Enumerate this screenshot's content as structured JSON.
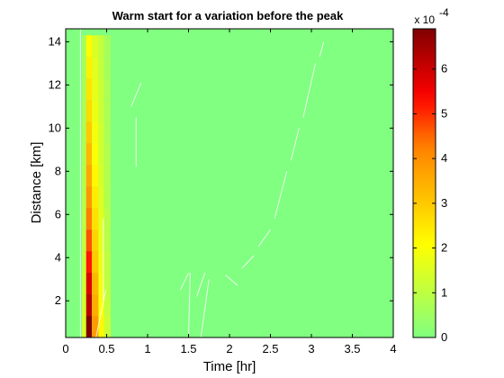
{
  "chart_data": {
    "type": "heatmap",
    "title": "Warm start for a variation before the peak",
    "xlabel": "Time [hr]",
    "ylabel": "Distance [km]",
    "xlim": [
      0,
      4
    ],
    "ylim": [
      0.3,
      14.6
    ],
    "xticks": [
      "0",
      "0.5",
      "1",
      "1.5",
      "2",
      "2.5",
      "3",
      "3.5",
      "4"
    ],
    "yticks": [
      "2",
      "4",
      "6",
      "8",
      "10",
      "12",
      "14"
    ],
    "colorbar": {
      "colormap": "jet-upper",
      "min": 0,
      "max": 0.00069,
      "ticks": [
        "0",
        "1",
        "2",
        "3",
        "4",
        "5",
        "6"
      ],
      "multiplier_base": "x 10",
      "multiplier_exp": "-4"
    },
    "background_color": "#80ff80",
    "grid": false,
    "columns": [
      {
        "t0": 0.2,
        "t1": 0.25,
        "values": [
          0.00015,
          0.00014,
          0.00013,
          0.00012,
          0.00011,
          0.0001,
          9e-05,
          9e-05,
          8e-05,
          8e-05,
          7e-05,
          7e-05,
          6e-05,
          6e-05
        ]
      },
      {
        "t0": 0.25,
        "t1": 0.32,
        "values": [
          0.00069,
          0.00062,
          0.00058,
          0.00052,
          0.00047,
          0.00043,
          0.00039,
          0.00036,
          0.00033,
          0.0003,
          0.00027,
          0.00025,
          0.00023,
          0.00021
        ]
      },
      {
        "t0": 0.32,
        "t1": 0.4,
        "values": [
          0.00038,
          0.00035,
          0.00033,
          0.0003,
          0.00028,
          0.00026,
          0.00024,
          0.00022,
          0.0002,
          0.00019,
          0.00018,
          0.00017,
          0.00016,
          0.00015
        ]
      },
      {
        "t0": 0.4,
        "t1": 0.47,
        "values": [
          0.00022,
          0.0002,
          0.00019,
          0.00018,
          0.00017,
          0.00016,
          0.00015,
          0.00014,
          0.00013,
          0.00013,
          0.00012,
          0.00012,
          0.00011,
          0.00011
        ]
      },
      {
        "t0": 0.47,
        "t1": 0.55,
        "values": [
          0.00012,
          0.00011,
          0.0001,
          0.0001,
          9e-05,
          9e-05,
          8e-05,
          8e-05,
          8e-05,
          7e-05,
          7e-05,
          7e-05,
          6e-05,
          6e-05
        ]
      }
    ],
    "row_step": 1.0,
    "row_start": 0.3
  }
}
